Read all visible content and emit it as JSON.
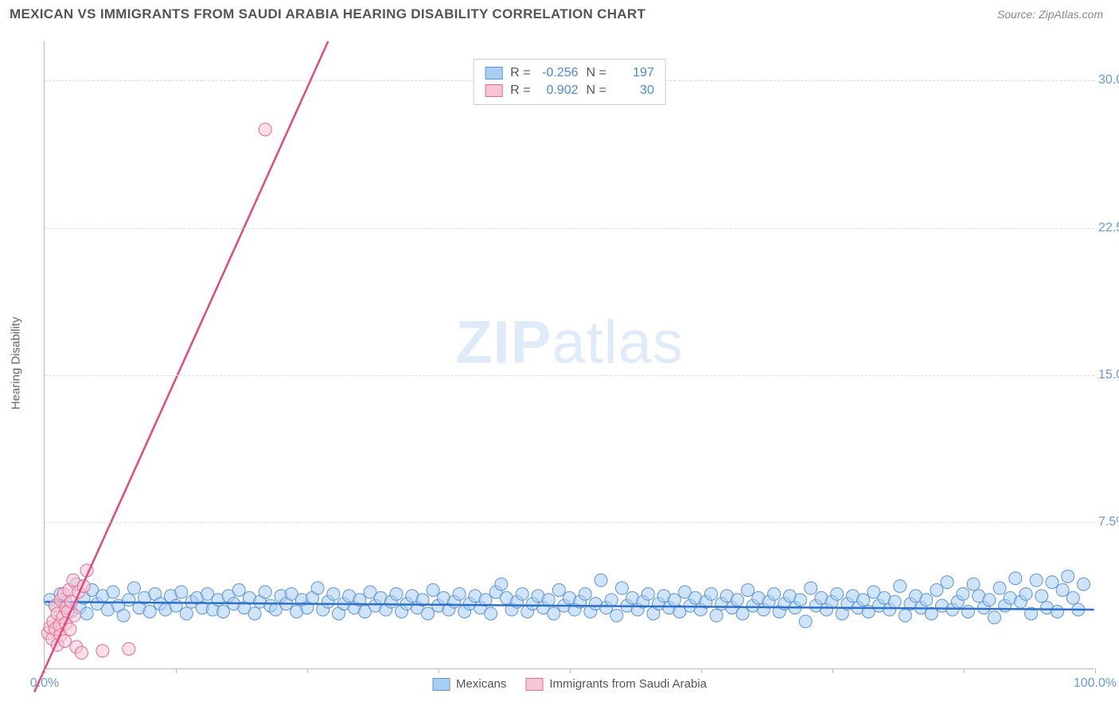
{
  "header": {
    "title": "MEXICAN VS IMMIGRANTS FROM SAUDI ARABIA HEARING DISABILITY CORRELATION CHART",
    "source": "Source: ZipAtlas.com"
  },
  "chart": {
    "type": "scatter",
    "ylabel": "Hearing Disability",
    "xlim": [
      0,
      100
    ],
    "ylim": [
      0,
      32
    ],
    "xticks": [
      {
        "pos": 0,
        "label": "0.0%"
      },
      {
        "pos": 100,
        "label": "100.0%"
      }
    ],
    "xtick_marks": [
      0,
      12.5,
      25,
      37.5,
      50,
      62.5,
      75,
      87.5,
      100
    ],
    "yticks": [
      {
        "pos": 7.5,
        "label": "7.5%"
      },
      {
        "pos": 15.0,
        "label": "15.0%"
      },
      {
        "pos": 22.5,
        "label": "22.5%"
      },
      {
        "pos": 30.0,
        "label": "30.0%"
      }
    ],
    "grid_color": "#dddddd",
    "background_color": "#ffffff",
    "watermark": {
      "zip": "ZIP",
      "atlas": "atlas"
    },
    "series": [
      {
        "name": "Mexicans",
        "color_fill": "#a9cef4",
        "color_stroke": "#5b94d6",
        "marker_radius": 8,
        "marker_opacity": 0.55,
        "trend": {
          "x1": 0,
          "y1": 3.4,
          "x2": 100,
          "y2": 3.0,
          "color": "#2e6fc9",
          "width": 2.5
        },
        "stats": {
          "R": "-0.256",
          "N": "197"
        },
        "points": [
          [
            0.5,
            3.5
          ],
          [
            1,
            3.2
          ],
          [
            1.5,
            3.8
          ],
          [
            2,
            3.4
          ],
          [
            2.5,
            2.9
          ],
          [
            3,
            4.3
          ],
          [
            3.3,
            3.1
          ],
          [
            3.7,
            3.6
          ],
          [
            4,
            2.8
          ],
          [
            4.5,
            4.0
          ],
          [
            5,
            3.3
          ],
          [
            5.5,
            3.7
          ],
          [
            6,
            3.0
          ],
          [
            6.5,
            3.9
          ],
          [
            7,
            3.2
          ],
          [
            7.5,
            2.7
          ],
          [
            8,
            3.5
          ],
          [
            8.5,
            4.1
          ],
          [
            9,
            3.1
          ],
          [
            9.5,
            3.6
          ],
          [
            10,
            2.9
          ],
          [
            10.5,
            3.8
          ],
          [
            11,
            3.3
          ],
          [
            11.5,
            3.0
          ],
          [
            12,
            3.7
          ],
          [
            12.5,
            3.2
          ],
          [
            13,
            3.9
          ],
          [
            13.5,
            2.8
          ],
          [
            14,
            3.4
          ],
          [
            14.5,
            3.6
          ],
          [
            15,
            3.1
          ],
          [
            15.5,
            3.8
          ],
          [
            16,
            3.0
          ],
          [
            16.5,
            3.5
          ],
          [
            17,
            2.9
          ],
          [
            17.5,
            3.7
          ],
          [
            18,
            3.3
          ],
          [
            18.5,
            4.0
          ],
          [
            19,
            3.1
          ],
          [
            19.5,
            3.6
          ],
          [
            20,
            2.8
          ],
          [
            20.5,
            3.4
          ],
          [
            21,
            3.9
          ],
          [
            21.5,
            3.2
          ],
          [
            22,
            3.0
          ],
          [
            22.5,
            3.7
          ],
          [
            23,
            3.3
          ],
          [
            23.5,
            3.8
          ],
          [
            24,
            2.9
          ],
          [
            24.5,
            3.5
          ],
          [
            25,
            3.1
          ],
          [
            25.5,
            3.6
          ],
          [
            26,
            4.1
          ],
          [
            26.5,
            3.0
          ],
          [
            27,
            3.4
          ],
          [
            27.5,
            3.8
          ],
          [
            28,
            2.8
          ],
          [
            28.5,
            3.3
          ],
          [
            29,
            3.7
          ],
          [
            29.5,
            3.1
          ],
          [
            30,
            3.5
          ],
          [
            30.5,
            2.9
          ],
          [
            31,
            3.9
          ],
          [
            31.5,
            3.2
          ],
          [
            32,
            3.6
          ],
          [
            32.5,
            3.0
          ],
          [
            33,
            3.4
          ],
          [
            33.5,
            3.8
          ],
          [
            34,
            2.9
          ],
          [
            34.5,
            3.3
          ],
          [
            35,
            3.7
          ],
          [
            35.5,
            3.1
          ],
          [
            36,
            3.5
          ],
          [
            36.5,
            2.8
          ],
          [
            37,
            4.0
          ],
          [
            37.5,
            3.2
          ],
          [
            38,
            3.6
          ],
          [
            38.5,
            3.0
          ],
          [
            39,
            3.4
          ],
          [
            39.5,
            3.8
          ],
          [
            40,
            2.9
          ],
          [
            40.5,
            3.3
          ],
          [
            41,
            3.7
          ],
          [
            41.5,
            3.1
          ],
          [
            42,
            3.5
          ],
          [
            42.5,
            2.8
          ],
          [
            43,
            3.9
          ],
          [
            43.5,
            4.3
          ],
          [
            44,
            3.6
          ],
          [
            44.5,
            3.0
          ],
          [
            45,
            3.4
          ],
          [
            45.5,
            3.8
          ],
          [
            46,
            2.9
          ],
          [
            46.5,
            3.3
          ],
          [
            47,
            3.7
          ],
          [
            47.5,
            3.1
          ],
          [
            48,
            3.5
          ],
          [
            48.5,
            2.8
          ],
          [
            49,
            4.0
          ],
          [
            49.5,
            3.2
          ],
          [
            50,
            3.6
          ],
          [
            50.5,
            3.0
          ],
          [
            51,
            3.4
          ],
          [
            51.5,
            3.8
          ],
          [
            52,
            2.9
          ],
          [
            52.5,
            3.3
          ],
          [
            53,
            4.5
          ],
          [
            53.5,
            3.1
          ],
          [
            54,
            3.5
          ],
          [
            54.5,
            2.7
          ],
          [
            55,
            4.1
          ],
          [
            55.5,
            3.2
          ],
          [
            56,
            3.6
          ],
          [
            56.5,
            3.0
          ],
          [
            57,
            3.4
          ],
          [
            57.5,
            3.8
          ],
          [
            58,
            2.8
          ],
          [
            58.5,
            3.3
          ],
          [
            59,
            3.7
          ],
          [
            59.5,
            3.1
          ],
          [
            60,
            3.5
          ],
          [
            60.5,
            2.9
          ],
          [
            61,
            3.9
          ],
          [
            61.5,
            3.2
          ],
          [
            62,
            3.6
          ],
          [
            62.5,
            3.0
          ],
          [
            63,
            3.4
          ],
          [
            63.5,
            3.8
          ],
          [
            64,
            2.7
          ],
          [
            64.5,
            3.3
          ],
          [
            65,
            3.7
          ],
          [
            65.5,
            3.1
          ],
          [
            66,
            3.5
          ],
          [
            66.5,
            2.8
          ],
          [
            67,
            4.0
          ],
          [
            67.5,
            3.2
          ],
          [
            68,
            3.6
          ],
          [
            68.5,
            3.0
          ],
          [
            69,
            3.4
          ],
          [
            69.5,
            3.8
          ],
          [
            70,
            2.9
          ],
          [
            70.5,
            3.3
          ],
          [
            71,
            3.7
          ],
          [
            71.5,
            3.1
          ],
          [
            72,
            3.5
          ],
          [
            72.5,
            2.4
          ],
          [
            73,
            4.1
          ],
          [
            73.5,
            3.2
          ],
          [
            74,
            3.6
          ],
          [
            74.5,
            3.0
          ],
          [
            75,
            3.4
          ],
          [
            75.5,
            3.8
          ],
          [
            76,
            2.8
          ],
          [
            76.5,
            3.3
          ],
          [
            77,
            3.7
          ],
          [
            77.5,
            3.1
          ],
          [
            78,
            3.5
          ],
          [
            78.5,
            2.9
          ],
          [
            79,
            3.9
          ],
          [
            79.5,
            3.2
          ],
          [
            80,
            3.6
          ],
          [
            80.5,
            3.0
          ],
          [
            81,
            3.4
          ],
          [
            81.5,
            4.2
          ],
          [
            82,
            2.7
          ],
          [
            82.5,
            3.3
          ],
          [
            83,
            3.7
          ],
          [
            83.5,
            3.1
          ],
          [
            84,
            3.5
          ],
          [
            84.5,
            2.8
          ],
          [
            85,
            4.0
          ],
          [
            85.5,
            3.2
          ],
          [
            86,
            4.4
          ],
          [
            86.5,
            3.0
          ],
          [
            87,
            3.4
          ],
          [
            87.5,
            3.8
          ],
          [
            88,
            2.9
          ],
          [
            88.5,
            4.3
          ],
          [
            89,
            3.7
          ],
          [
            89.5,
            3.1
          ],
          [
            90,
            3.5
          ],
          [
            90.5,
            2.6
          ],
          [
            91,
            4.1
          ],
          [
            91.5,
            3.2
          ],
          [
            92,
            3.6
          ],
          [
            92.5,
            4.6
          ],
          [
            93,
            3.4
          ],
          [
            93.5,
            3.8
          ],
          [
            94,
            2.8
          ],
          [
            94.5,
            4.5
          ],
          [
            95,
            3.7
          ],
          [
            95.5,
            3.1
          ],
          [
            96,
            4.4
          ],
          [
            96.5,
            2.9
          ],
          [
            97,
            4.0
          ],
          [
            97.5,
            4.7
          ],
          [
            98,
            3.6
          ],
          [
            98.5,
            3.0
          ],
          [
            99,
            4.3
          ]
        ]
      },
      {
        "name": "Immigrants from Saudi Arabia",
        "color_fill": "#f7c5d4",
        "color_stroke": "#e86a91",
        "marker_radius": 8,
        "marker_opacity": 0.55,
        "trend": {
          "x1": -1,
          "y1": -1.2,
          "x2": 27,
          "y2": 32,
          "color": "#e54880",
          "width": 2.5
        },
        "stats": {
          "R": "0.902",
          "N": "30"
        },
        "points": [
          [
            0.3,
            1.8
          ],
          [
            0.5,
            2.1
          ],
          [
            0.7,
            1.5
          ],
          [
            0.8,
            2.4
          ],
          [
            1.0,
            2.0
          ],
          [
            1.0,
            3.2
          ],
          [
            1.2,
            1.2
          ],
          [
            1.2,
            2.8
          ],
          [
            1.4,
            2.2
          ],
          [
            1.5,
            3.5
          ],
          [
            1.5,
            1.7
          ],
          [
            1.7,
            2.6
          ],
          [
            1.8,
            3.8
          ],
          [
            1.9,
            1.4
          ],
          [
            2.0,
            2.3
          ],
          [
            2.0,
            3.1
          ],
          [
            2.2,
            2.9
          ],
          [
            2.3,
            4.0
          ],
          [
            2.4,
            2.0
          ],
          [
            2.5,
            3.4
          ],
          [
            2.7,
            4.5
          ],
          [
            2.8,
            2.7
          ],
          [
            3.0,
            1.1
          ],
          [
            3.2,
            3.9
          ],
          [
            3.5,
            0.8
          ],
          [
            3.7,
            4.2
          ],
          [
            4.0,
            5.0
          ],
          [
            5.5,
            0.9
          ],
          [
            8.0,
            1.0
          ],
          [
            21.0,
            27.5
          ]
        ]
      }
    ],
    "legend_labels": {
      "R": "R =",
      "N": "N ="
    },
    "bottom_legend": [
      {
        "label": "Mexicans",
        "fill": "#a9cef4",
        "stroke": "#5b94d6"
      },
      {
        "label": "Immigrants from Saudi Arabia",
        "fill": "#f7c5d4",
        "stroke": "#e86a91"
      }
    ]
  }
}
